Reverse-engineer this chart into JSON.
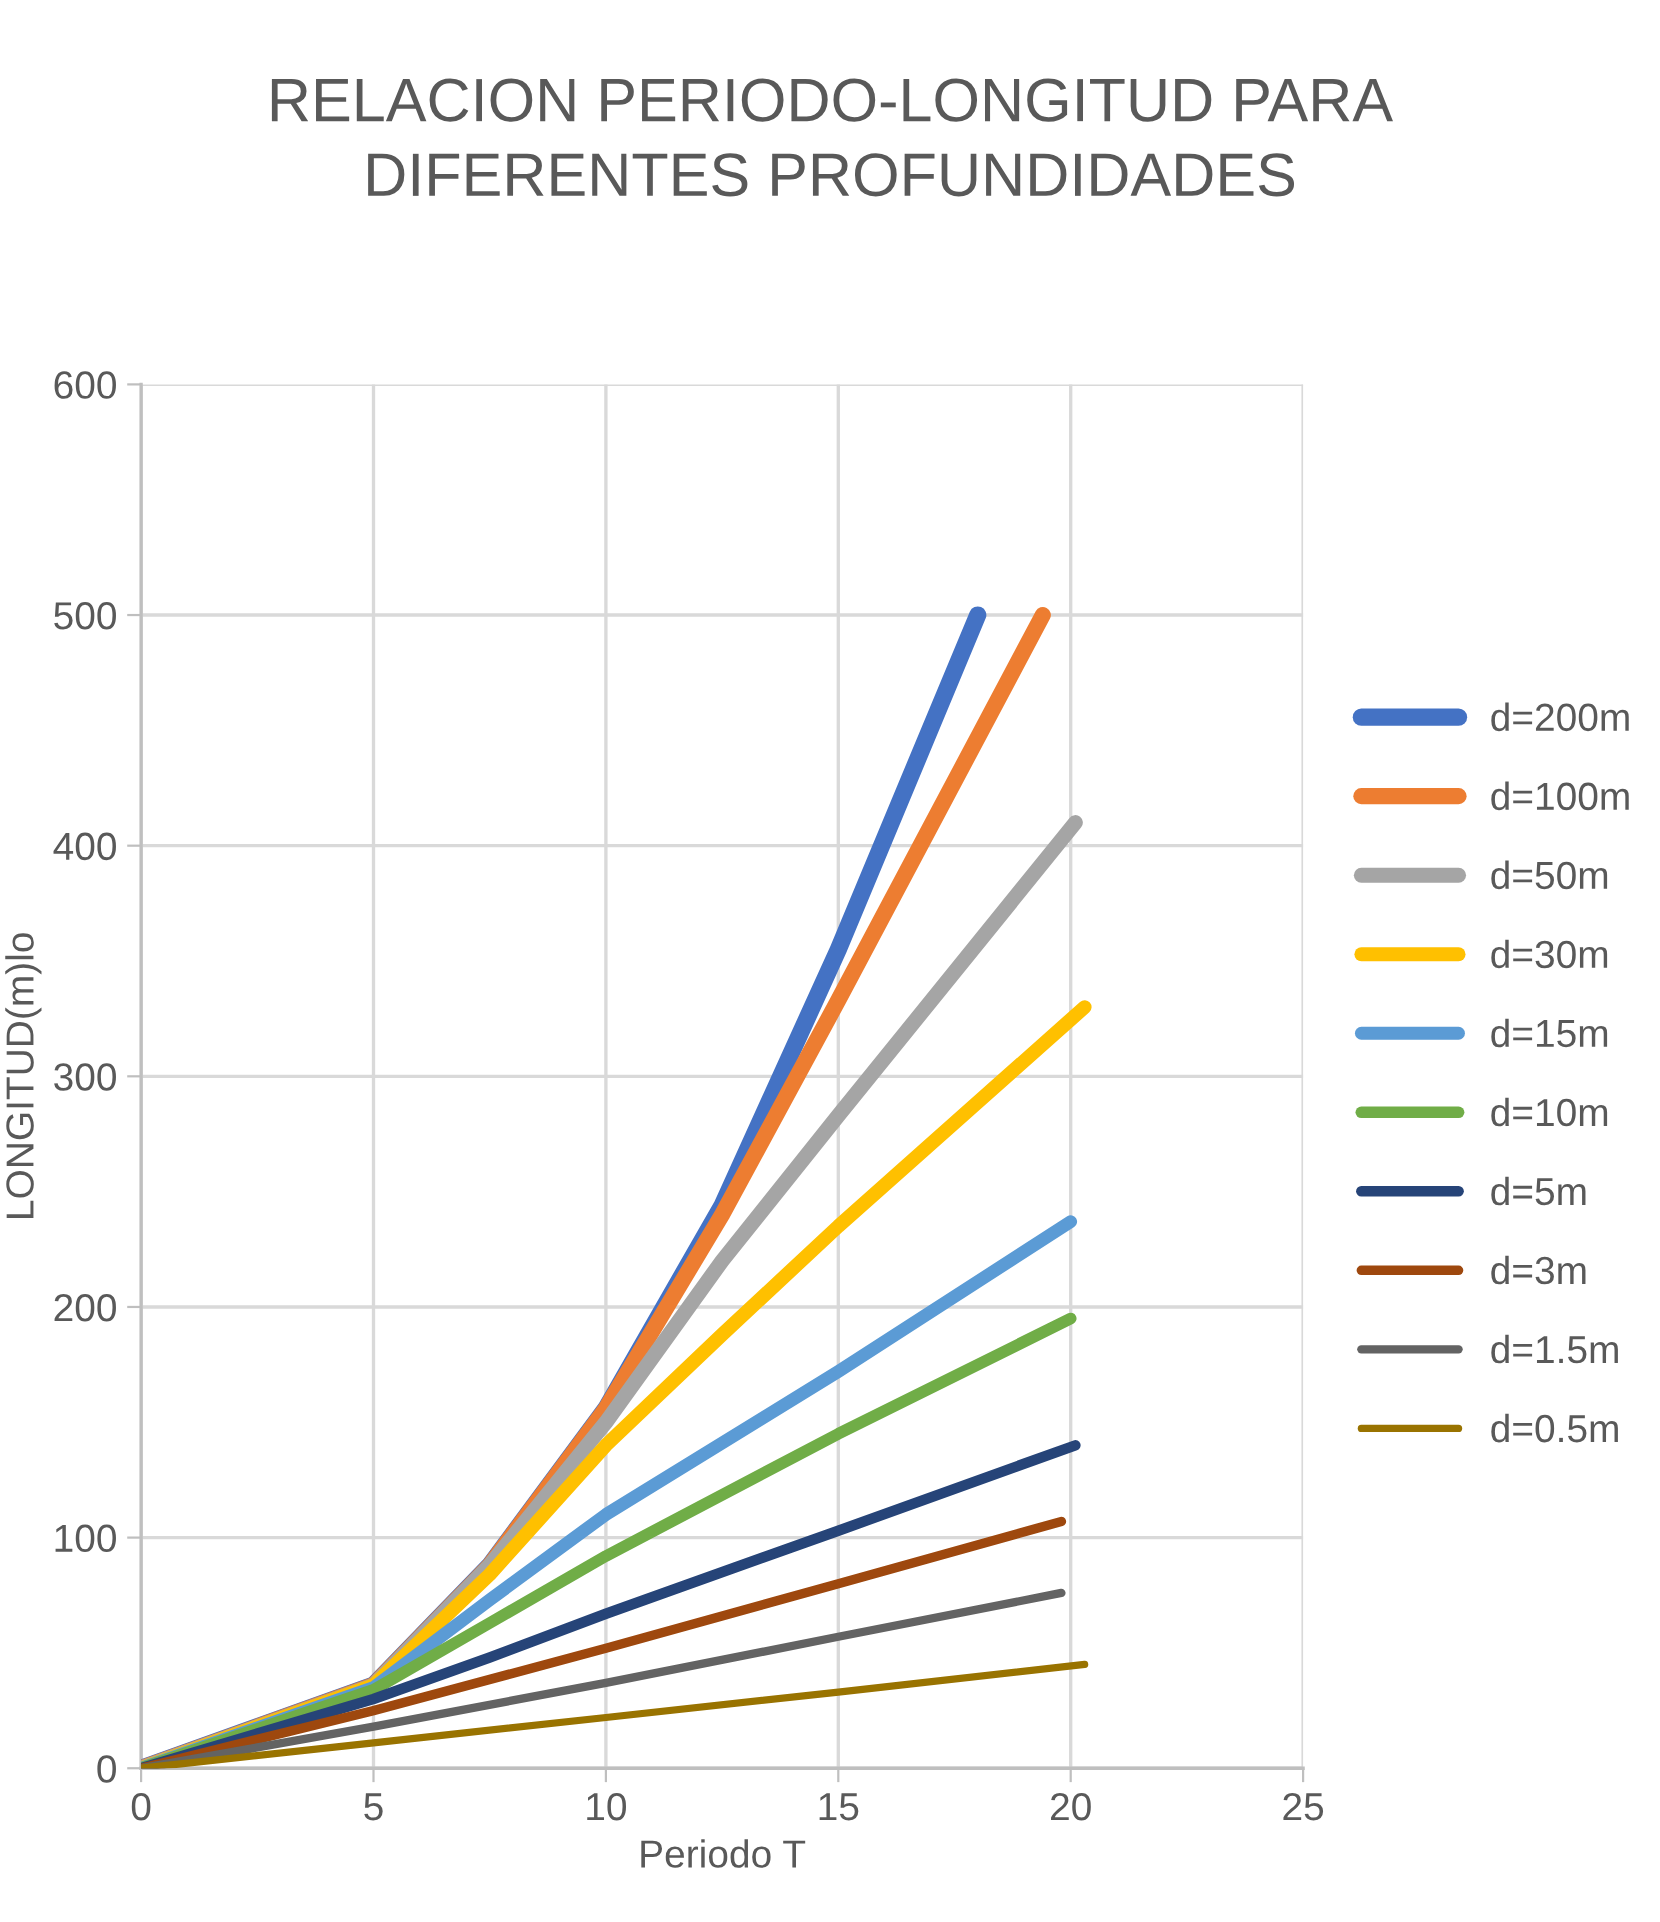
{
  "chart_data": {
    "type": "line",
    "title": "RELACION PERIODO-LONGITUD PARA\nDIFERENTES PROFUNDIDADES",
    "xlabel": "Periodo T",
    "ylabel": "LONGITUD(m)lo",
    "xlim": [
      0,
      25
    ],
    "xticks": [
      0,
      5,
      10,
      15,
      20,
      25
    ],
    "ylim": [
      0,
      600
    ],
    "yticks": [
      0,
      100,
      200,
      300,
      400,
      500,
      600
    ],
    "grid": true,
    "legend": "right",
    "marker": "none",
    "series": [
      {
        "name": "d=200m",
        "color": "#4472c4",
        "x": [
          0,
          5,
          7.5,
          10,
          12.5,
          15,
          18.0
        ],
        "values": [
          0,
          36,
          88,
          156,
          244,
          355,
          500
        ]
      },
      {
        "name": "d=100m",
        "color": "#ed7d31",
        "x": [
          0,
          5,
          7.5,
          10,
          12.5,
          15,
          19.4
        ],
        "values": [
          0,
          36,
          88,
          156,
          240,
          333,
          500
        ]
      },
      {
        "name": "d=50m",
        "color": "#a5a5a5",
        "x": [
          0,
          5,
          7.5,
          10,
          12.5,
          15,
          20.1
        ],
        "values": [
          0,
          36,
          88,
          150,
          220,
          283,
          410
        ]
      },
      {
        "name": "d=30m",
        "color": "#ffc000",
        "x": [
          0,
          5,
          7.5,
          10,
          12.5,
          15,
          20.3
        ],
        "values": [
          0,
          36,
          84,
          140,
          188,
          235,
          330
        ]
      },
      {
        "name": "d=15m",
        "color": "#5b9bd5",
        "x": [
          0,
          5,
          7.5,
          10,
          15,
          20.0
        ],
        "values": [
          0,
          35,
          73,
          110,
          172,
          237
        ]
      },
      {
        "name": "d=10m",
        "color": "#70ad47",
        "x": [
          0,
          5,
          7.5,
          10,
          15,
          20.0
        ],
        "values": [
          0,
          34,
          63,
          92,
          145,
          195
        ]
      },
      {
        "name": "d=5m",
        "color": "#264478",
        "x": [
          0,
          5,
          7.5,
          10,
          15,
          20.1
        ],
        "values": [
          0,
          30,
          48,
          67,
          103,
          140
        ]
      },
      {
        "name": "d=3m",
        "color": "#9e480e",
        "x": [
          0,
          5,
          10,
          15,
          19.8
        ],
        "values": [
          0,
          25,
          52,
          80,
          107
        ]
      },
      {
        "name": "d=1.5m",
        "color": "#636363",
        "x": [
          0,
          5,
          10,
          15,
          19.8
        ],
        "values": [
          0,
          18,
          37,
          57,
          76
        ]
      },
      {
        "name": "d=0.5m",
        "color": "#997300",
        "x": [
          0,
          5,
          10,
          15,
          20.3
        ],
        "values": [
          0,
          11,
          22,
          33,
          45
        ]
      }
    ]
  }
}
